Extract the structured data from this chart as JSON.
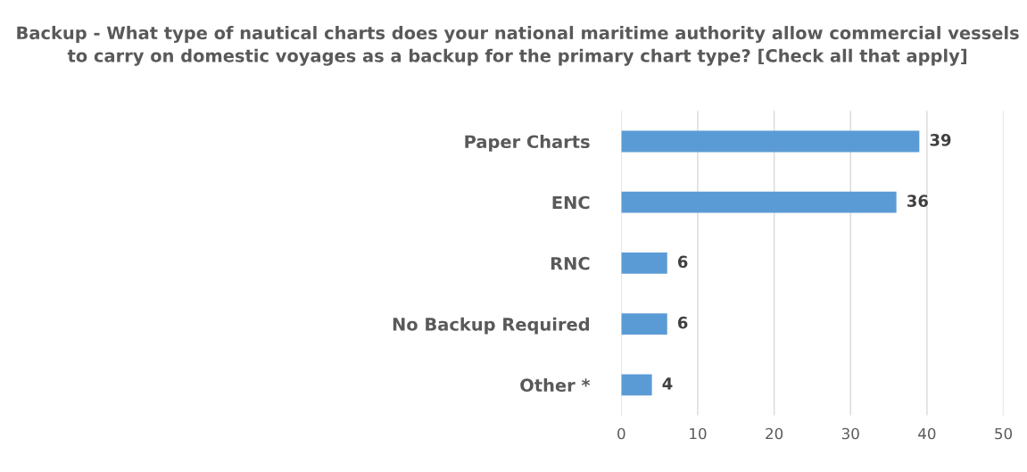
{
  "chart_data": {
    "type": "bar",
    "orientation": "horizontal",
    "title": "Backup - What type of nautical charts does your national maritime authority allow commercial vessels to carry on domestic voyages as a backup for the primary chart type? [Check all that apply]",
    "categories": [
      "Paper Charts",
      "ENC",
      "RNC",
      "No Backup Required",
      "Other *"
    ],
    "values": [
      39,
      36,
      6,
      6,
      4
    ],
    "color": "#5b9bd5",
    "xlim": [
      0,
      50
    ],
    "xticks": [
      0,
      10,
      20,
      30,
      40,
      50
    ],
    "grid": "x",
    "data_labels": true,
    "legend": false
  }
}
